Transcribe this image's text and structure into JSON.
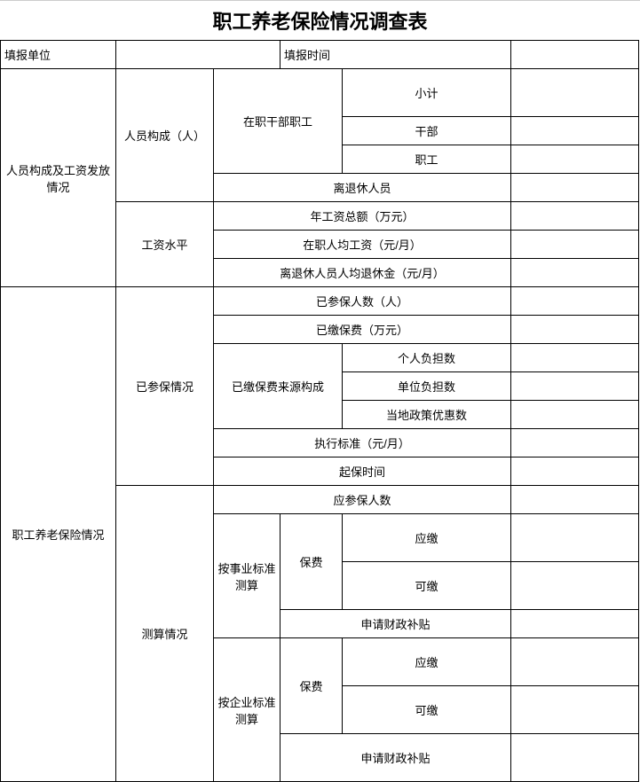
{
  "title": "职工养老保险情况调查表",
  "header": {
    "unit_label": "填报单位",
    "time_label": "填报时间"
  },
  "section1": {
    "title": "人员构成及工资发放情况",
    "group1": {
      "label": "人员构成（人）",
      "sub1_label": "在职干部职工",
      "rows": {
        "subtotal": "小计",
        "cadre": "干部",
        "staff": "职工"
      },
      "retired": "离退休人员"
    },
    "group2": {
      "label": "工资水平",
      "rows": {
        "annual_total": "年工资总额（万元）",
        "avg_active": "在职人均工资（元/月）",
        "avg_retired": "离退休人员人均退休金（元/月）"
      }
    }
  },
  "section2": {
    "title": "职工养老保险情况",
    "group1": {
      "label": "已参保情况",
      "rows": {
        "insured_count": "已参保人数（人）",
        "paid_amount": "已缴保费（万元）"
      },
      "source": {
        "label": "已缴保费来源构成",
        "personal": "个人负担数",
        "unit": "单位负担数",
        "policy": "当地政策优惠数"
      },
      "rows2": {
        "standard": "执行标准（元/月）",
        "start_time": "起保时间"
      }
    },
    "group2": {
      "label": "测算情况",
      "should_insure": "应参保人数",
      "sub1": {
        "label": "按事业标准测算",
        "fee_label": "保费",
        "payable": "应缴",
        "affordable": "可缴",
        "subsidy": "申请财政补贴"
      },
      "sub2": {
        "label": "按企业标准测算",
        "fee_label": "保费",
        "payable": "应缴",
        "affordable": "可缴",
        "subsidy": "申请财政补贴"
      }
    }
  }
}
